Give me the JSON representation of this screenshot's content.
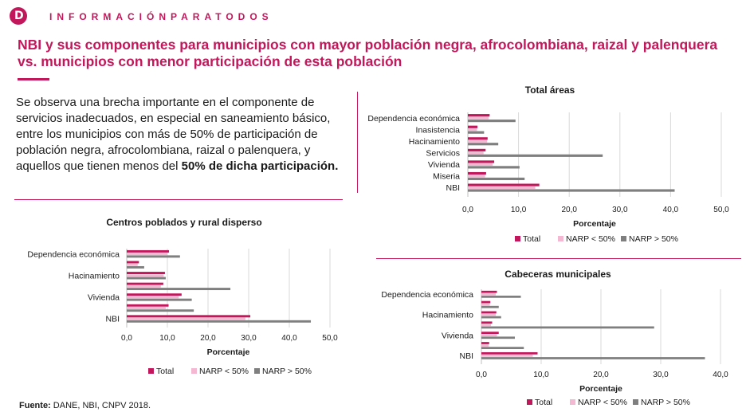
{
  "header": {
    "logo_letter": "D",
    "brand": "INFORMACIÓNPARATODOS"
  },
  "title": "NBI y sus componentes para municipios con mayor población negra, afrocolombiana, raizal y palenquera vs. municipios con menor participación de esta población",
  "body": {
    "text": "Se observa una brecha importante en el componente de servicios inadecuados, en especial en saneamiento básico, entre los municipios con más de 50% de participación de población negra, afrocolombiana, raizal o palenquera, y aquellos que tienen menos del ",
    "bold": "50% de dicha participación."
  },
  "source": {
    "label": "Fuente:",
    "text": " DANE, NBI, CNPV 2018."
  },
  "colors": {
    "accent": "#c2185b",
    "total": "#c2185b",
    "narp_lt": "#f4b8d2",
    "narp_gt": "#7f7f7f",
    "grid": "#d9d9d9"
  },
  "chart_data": [
    {
      "type": "bar",
      "orientation": "horizontal",
      "title": "Total áreas",
      "xlabel": "Porcentaje",
      "ylabel": "",
      "xlim": [
        0,
        50
      ],
      "xticks": [
        "0,0",
        "10,0",
        "20,0",
        "30,0",
        "40,0",
        "50,0"
      ],
      "categories": [
        "Dependencia económica",
        "Inasistencia",
        "Hacinamiento",
        "Servicios",
        "Vivienda",
        "Miseria",
        "NBI"
      ],
      "series": [
        {
          "name": "Total",
          "values": [
            4.3,
            1.9,
            3.9,
            3.5,
            5.2,
            3.6,
            14.1
          ]
        },
        {
          "name": "NARP < 50%",
          "values": [
            4.1,
            1.8,
            3.8,
            3.1,
            4.9,
            3.4,
            13.3
          ]
        },
        {
          "name": "NARP > 50%",
          "values": [
            9.4,
            3.2,
            6.0,
            26.6,
            10.2,
            11.2,
            40.8
          ]
        }
      ],
      "legend": "bottom"
    },
    {
      "type": "bar",
      "orientation": "horizontal",
      "title": "Centros poblados y rural disperso",
      "xlabel": "Porcentaje",
      "ylabel": "",
      "xlim": [
        0,
        50
      ],
      "xticks": [
        "0,0",
        "10,0",
        "20,0",
        "30,0",
        "40,0",
        "50,0"
      ],
      "categories": [
        "Dependencia económica",
        "",
        "Hacinamiento",
        "",
        "Vivienda",
        "",
        "NBI"
      ],
      "series": [
        {
          "name": "Total",
          "values": [
            10.4,
            3.0,
            9.4,
            9.0,
            13.5,
            10.3,
            30.4
          ]
        },
        {
          "name": "NARP < 50%",
          "values": [
            10.0,
            2.7,
            9.1,
            8.4,
            12.8,
            9.6,
            29.2
          ]
        },
        {
          "name": "NARP > 50%",
          "values": [
            13.1,
            4.3,
            9.6,
            25.5,
            16.0,
            16.5,
            45.3
          ]
        }
      ],
      "legend": "bottom"
    },
    {
      "type": "bar",
      "orientation": "horizontal",
      "title": "Cabeceras municipales",
      "xlabel": "Porcentaje",
      "ylabel": "",
      "xlim": [
        0,
        40
      ],
      "xticks": [
        "0,0",
        "10,0",
        "20,0",
        "30,0",
        "40,0"
      ],
      "categories": [
        "Dependencia económica",
        "",
        "Hacinamiento",
        "",
        "Vivienda",
        "",
        "NBI"
      ],
      "series": [
        {
          "name": "Total",
          "values": [
            2.6,
            1.5,
            2.5,
            1.8,
            2.9,
            1.3,
            9.4
          ]
        },
        {
          "name": "NARP < 50%",
          "values": [
            2.4,
            1.4,
            2.4,
            1.6,
            2.6,
            1.2,
            8.6
          ]
        },
        {
          "name": "NARP > 50%",
          "values": [
            6.6,
            2.9,
            3.3,
            28.9,
            5.6,
            7.1,
            37.4
          ]
        }
      ],
      "legend": "bottom"
    }
  ]
}
